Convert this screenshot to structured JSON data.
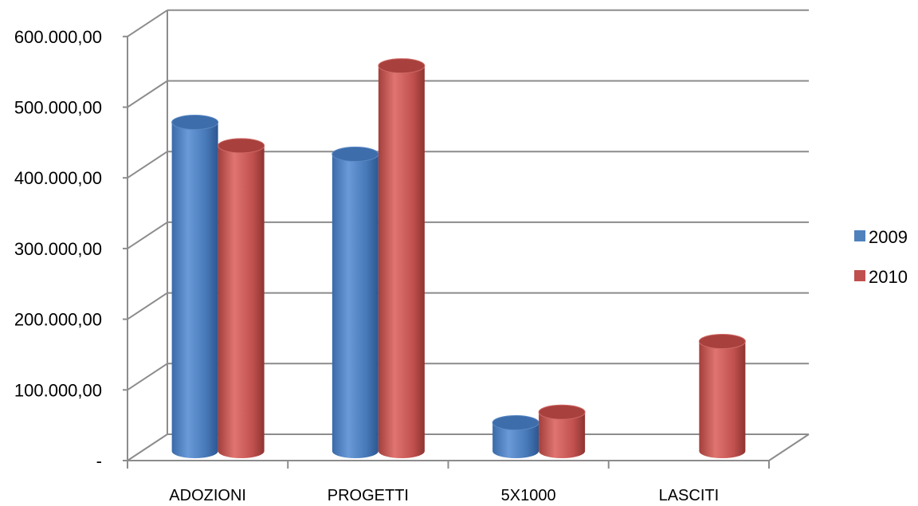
{
  "chart_data": {
    "type": "bar",
    "style": "3d-cylinder",
    "categories": [
      "ADOZIONI",
      "PROGETTI",
      "5X1000",
      "LASCITI"
    ],
    "series": [
      {
        "name": "2009",
        "color": "#4F81BD",
        "values": [
          465000,
          420000,
          40000,
          null
        ]
      },
      {
        "name": "2010",
        "color": "#C0504D",
        "values": [
          432000,
          545000,
          55000,
          155000
        ]
      }
    ],
    "y_ticks": [
      "-",
      "100.000,00",
      "200.000,00",
      "300.000,00",
      "400.000,00",
      "500.000,00",
      "600.000,00"
    ],
    "ylim": [
      0,
      600000
    ],
    "grid": true,
    "legend_position": "right"
  }
}
